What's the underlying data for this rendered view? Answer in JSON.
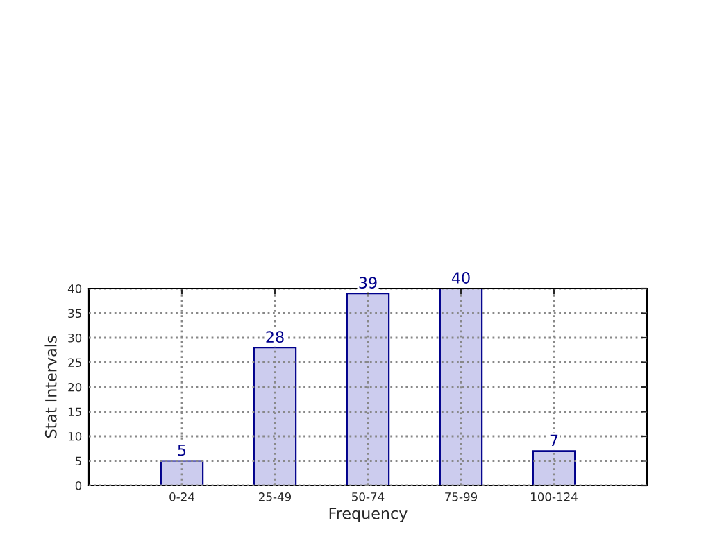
{
  "chart_data": {
    "type": "bar",
    "xlabel": "Frequency",
    "ylabel": "Stat Intervals",
    "categories": [
      "0-24",
      "25-49",
      "50-74",
      "75-99",
      "100-124"
    ],
    "values": [
      5,
      28,
      39,
      40,
      7
    ],
    "color": "#ccccee",
    "ylim": [
      0,
      40
    ],
    "yticks": [
      0,
      5,
      10,
      15,
      20,
      25,
      30,
      35,
      40
    ],
    "grid": true,
    "data_labels": true
  }
}
